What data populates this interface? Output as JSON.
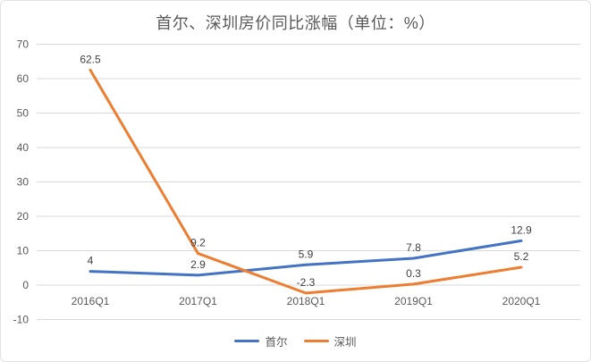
{
  "title": "首尔、深圳房价同比涨幅（单位：%）",
  "chart_data": {
    "type": "line",
    "title": "首尔、深圳房价同比涨幅（单位：%）",
    "categories": [
      "2016Q1",
      "2017Q1",
      "2018Q1",
      "2019Q1",
      "2020Q1"
    ],
    "series": [
      {
        "name": "首尔",
        "values": [
          4,
          2.9,
          5.9,
          7.8,
          12.9
        ],
        "color": "#4472C4"
      },
      {
        "name": "深圳",
        "values": [
          62.5,
          9.2,
          -2.3,
          0.3,
          5.2
        ],
        "color": "#ED7D31"
      }
    ],
    "xlabel": "",
    "ylabel": "",
    "ylim": [
      -10,
      70
    ],
    "ytick_step": 10,
    "yticks": [
      -10,
      0,
      10,
      20,
      30,
      40,
      50,
      60,
      70
    ],
    "grid": true,
    "data_labels": true,
    "legend_position": "bottom"
  },
  "colors": {
    "background": "#FFFFFF",
    "border": "#E2E2E2",
    "grid": "#D9D9D9",
    "axis_text": "#595959",
    "data_label": "#404040",
    "title_text": "#595959"
  }
}
